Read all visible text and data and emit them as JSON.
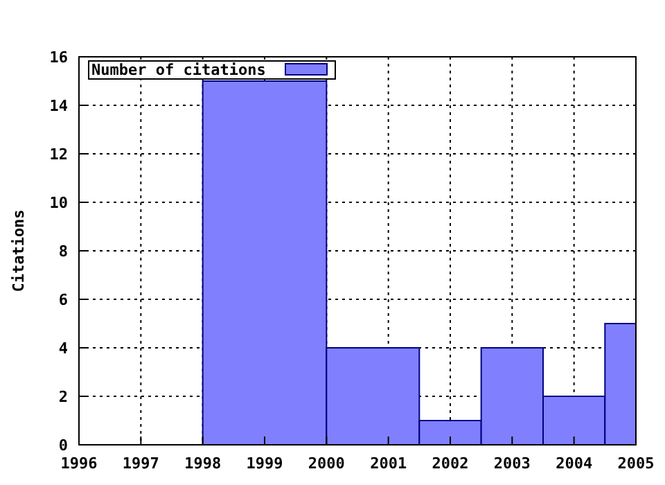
{
  "chart_data": {
    "type": "histogram",
    "ylabel": "Citations",
    "bins": [
      1998,
      2000,
      2001.5,
      2002.5,
      2003.5,
      2004.5,
      2005
    ],
    "xlim": [
      1996,
      2005
    ],
    "xticks": [
      1996,
      1997,
      1998,
      1999,
      2000,
      2001,
      2002,
      2003,
      2004,
      2005
    ],
    "ylim": [
      0,
      16
    ],
    "yticks": [
      0,
      2,
      4,
      6,
      8,
      10,
      12,
      14,
      16
    ],
    "grid": true,
    "legend": "top left",
    "series": [
      {
        "name": "Number of citations",
        "color": "#8080ff",
        "values": [
          15,
          4,
          1,
          4,
          2,
          5
        ]
      }
    ]
  }
}
